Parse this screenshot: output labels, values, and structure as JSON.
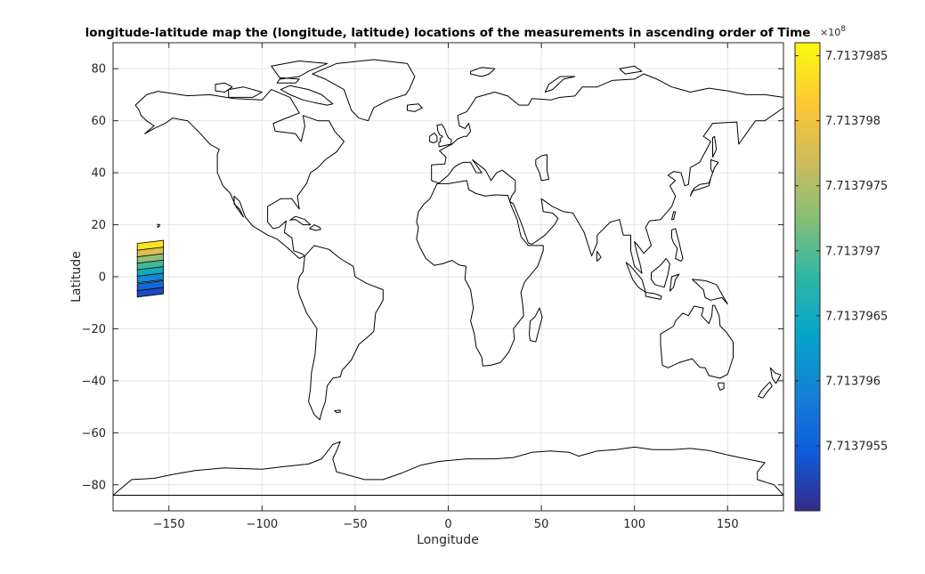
{
  "chart_data": {
    "type": "map-scatter",
    "title": "longitude-latitude map the (longitude, latitude) locations of the measurements in ascending order of Time",
    "xlabel": "Longitude",
    "ylabel": "Latitude",
    "xlim": [
      -180,
      180
    ],
    "ylim": [
      -90,
      90
    ],
    "xticks": [
      -150,
      -100,
      -50,
      0,
      50,
      100,
      150
    ],
    "xtick_labels": [
      "−150",
      "−100",
      "−50",
      "0",
      "50",
      "100",
      "150"
    ],
    "yticks": [
      80,
      60,
      40,
      20,
      0,
      -20,
      -40,
      -60,
      -80
    ],
    "ytick_labels": [
      "80",
      "60",
      "40",
      "20",
      "0",
      "−20",
      "−40",
      "−60",
      "−80"
    ],
    "grid": true,
    "colorbar": {
      "colormap": "parula",
      "exponent_label": "×10",
      "exponent_power": "8",
      "clim": [
        7.713795,
        7.7137986
      ],
      "ticks": [
        7.7137955,
        7.713796,
        7.7137965,
        7.713797,
        7.7137975,
        7.713798,
        7.7137985
      ],
      "tick_labels": [
        "7.7137955",
        "7.713796",
        "7.7137965",
        "7.713797",
        "7.7137975",
        "7.713798",
        "7.7137985"
      ],
      "colors": [
        "#352a87",
        "#0f5cdd",
        "#1481d6",
        "#06a4ca",
        "#2eb7a4",
        "#87bf77",
        "#d1bb59",
        "#fec832",
        "#f9fb0e"
      ]
    },
    "series": [
      {
        "name": "",
        "points": [
          {
            "lon": -160,
            "lat": -6.5,
            "time": 7.7137953
          },
          {
            "lon": -160,
            "lat": -4,
            "time": 7.7137956
          },
          {
            "lon": -160,
            "lat": -1,
            "time": 7.713796
          },
          {
            "lon": -160,
            "lat": 1.5,
            "time": 7.7137965
          },
          {
            "lon": -160,
            "lat": 4,
            "time": 7.7137969
          },
          {
            "lon": -160,
            "lat": 6.5,
            "time": 7.7137973
          },
          {
            "lon": -160,
            "lat": 9,
            "time": 7.7137978
          },
          {
            "lon": -160,
            "lat": 11.5,
            "time": 7.7137984
          }
        ]
      }
    ]
  },
  "map": {
    "coastline_color": "#000000",
    "grid_color": "#e6e6e6"
  }
}
